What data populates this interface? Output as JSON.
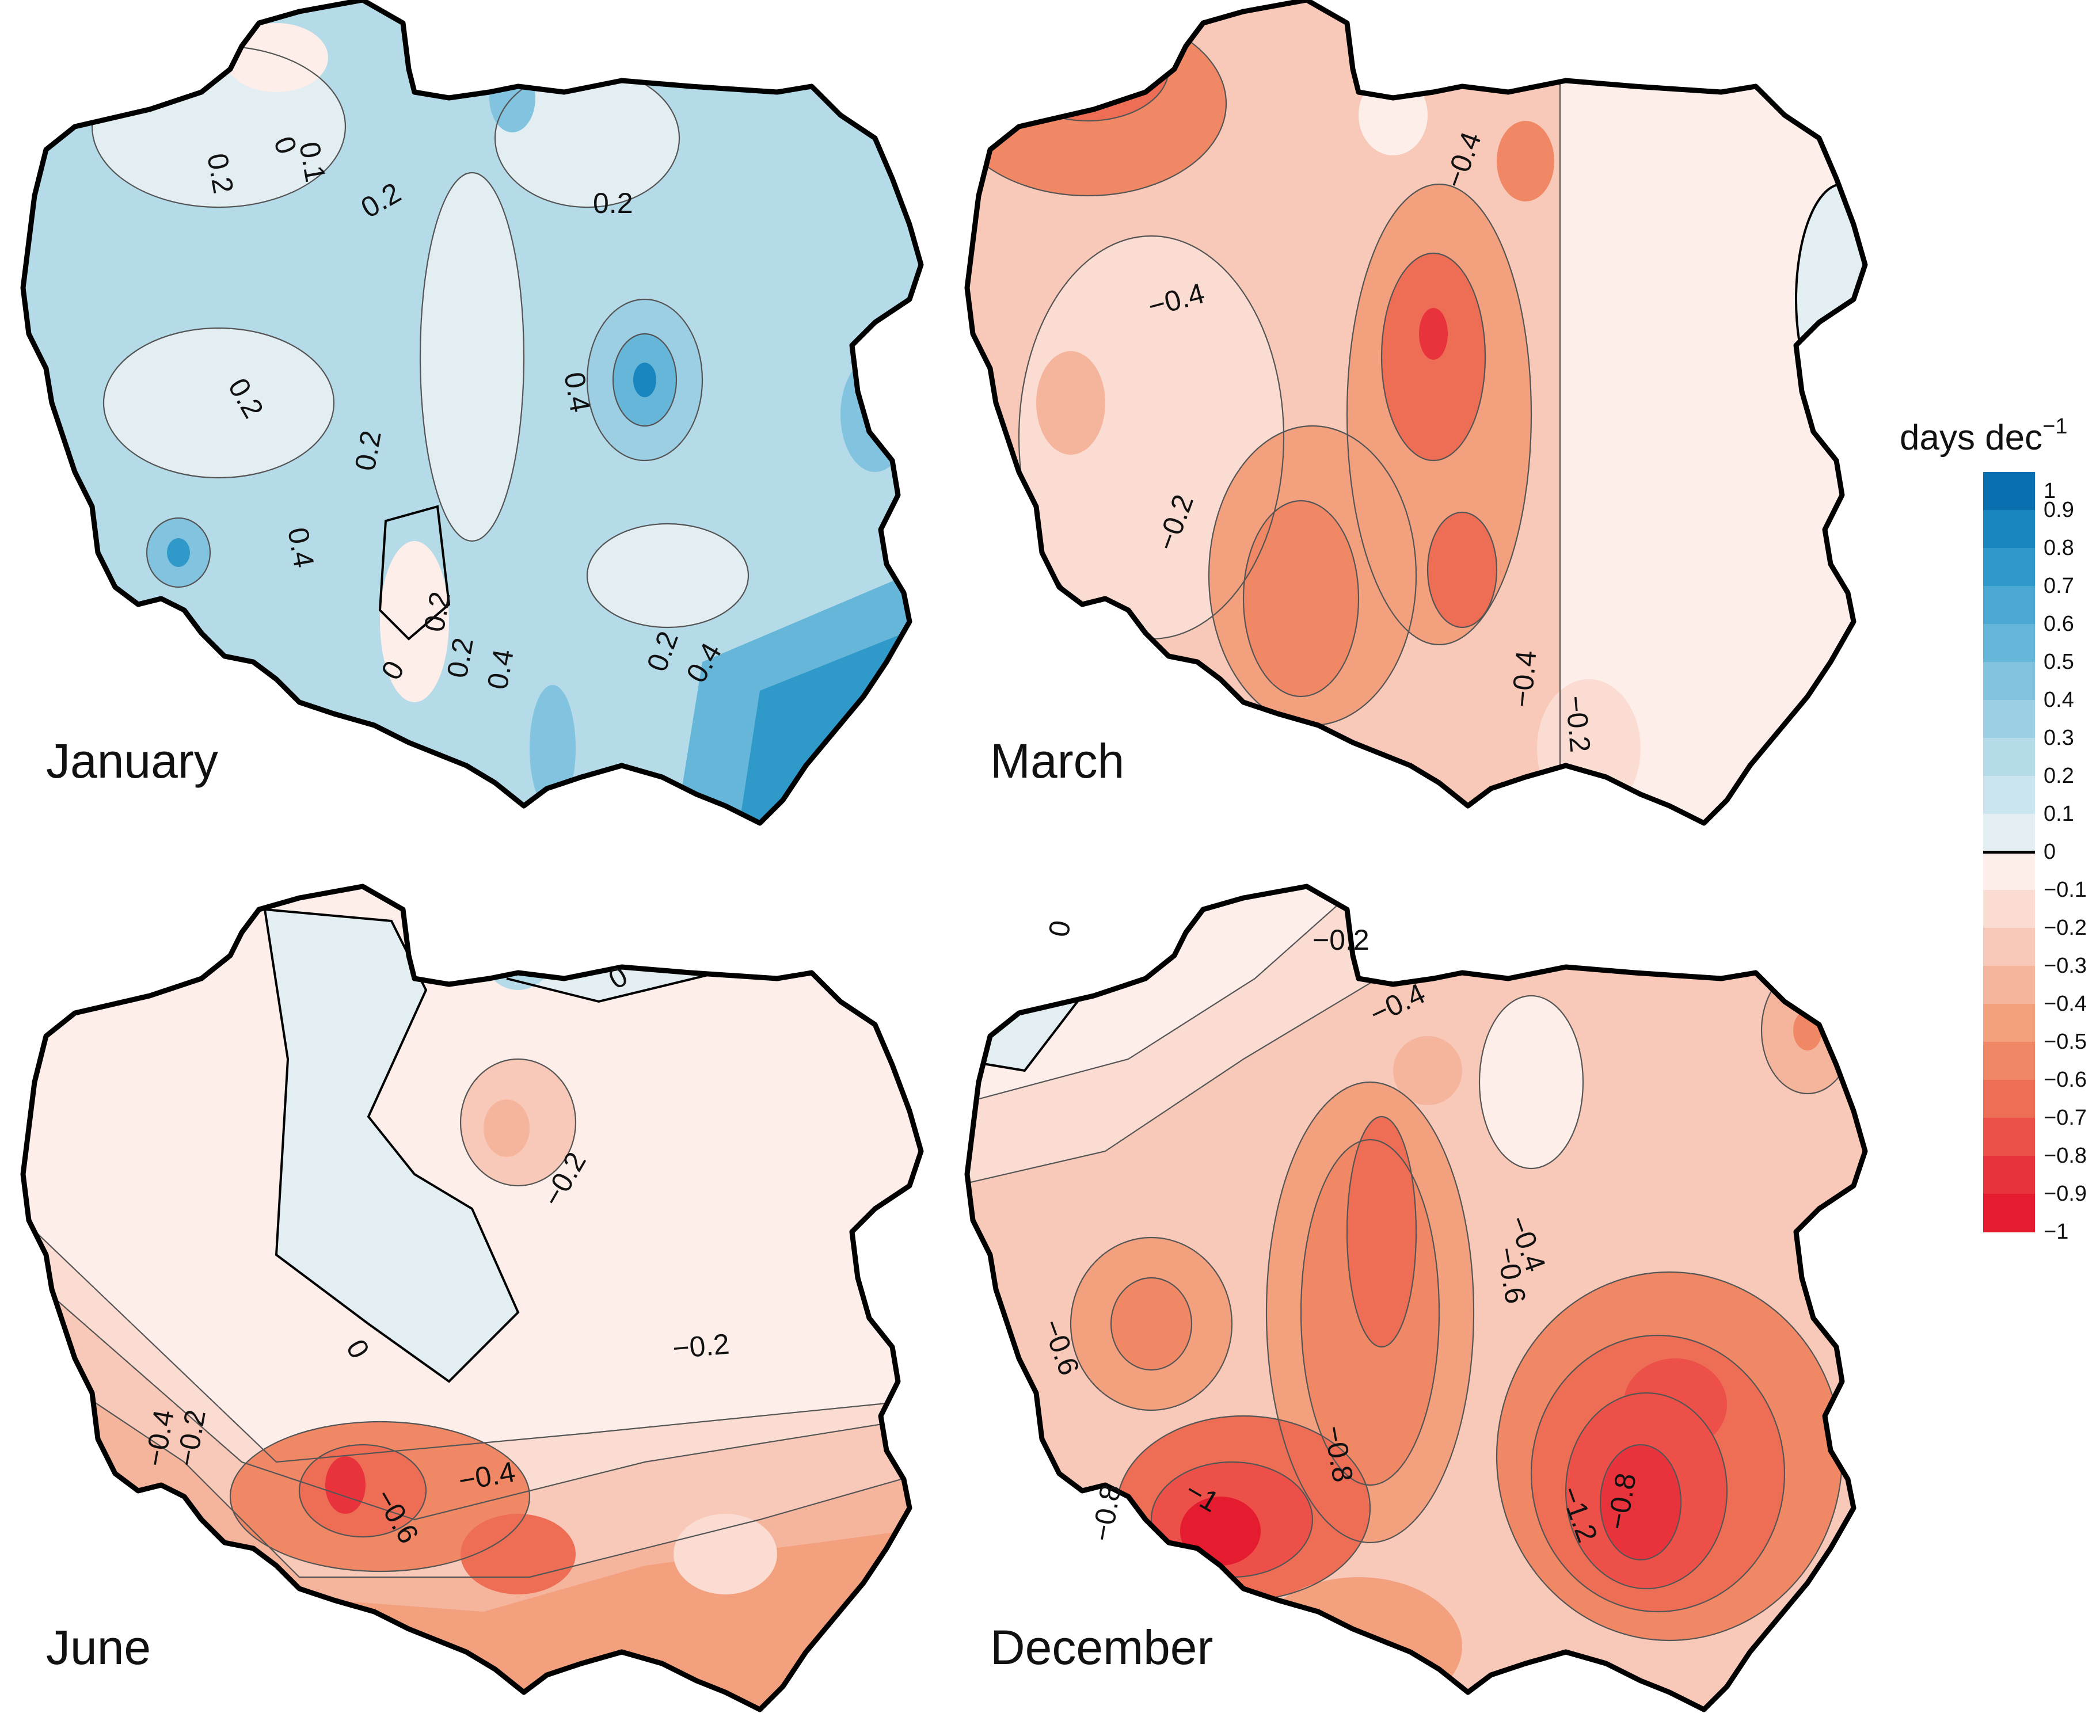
{
  "figure": {
    "panels": [
      {
        "id": "january",
        "month": "January",
        "palette": "blue",
        "contour_labels": [
          "0",
          "0.1",
          "0.2",
          "0.2",
          "0.2",
          "0.2",
          "0.2",
          "0.2",
          "0.4",
          "0.4",
          "0",
          "0.2",
          "0.4",
          "0.2",
          "0.4"
        ]
      },
      {
        "id": "march",
        "month": "March",
        "palette": "red",
        "contour_labels": [
          "−0.4",
          "−0.4",
          "−0.2",
          "−0.4",
          "−0.2"
        ]
      },
      {
        "id": "june",
        "month": "June",
        "palette": "red",
        "contour_labels": [
          "0",
          "−0.2",
          "0",
          "−0.2",
          "−0.4",
          "−0.2",
          "−0.4",
          "−0.6"
        ]
      },
      {
        "id": "december",
        "month": "December",
        "palette": "red",
        "contour_labels": [
          "0",
          "−0.2",
          "−0.4",
          "−0.4",
          "−0.6",
          "−0.6",
          "−0.8",
          "−1",
          "−0.8",
          "−1.2",
          "−0.8"
        ]
      }
    ]
  },
  "legend": {
    "title": "days dec",
    "title_superscript": "−1",
    "ticks": [
      "1",
      "0.9",
      "0.8",
      "0.7",
      "0.6",
      "0.5",
      "0.4",
      "0.3",
      "0.2",
      "0.1",
      "0",
      "−0.1",
      "−0.2",
      "−0.3",
      "−0.4",
      "−0.5",
      "−0.6",
      "−0.7",
      "−0.8",
      "−0.9",
      "−1"
    ],
    "colors": {
      "pos_1.0": "#0a6fae",
      "pos_0.9": "#1a86bf",
      "pos_0.8": "#2f99c9",
      "pos_0.7": "#4aa8d2",
      "pos_0.6": "#66b6d9",
      "pos_0.5": "#82c3df",
      "pos_0.4": "#9ccfe4",
      "pos_0.3": "#b5dbe9",
      "pos_0.2": "#cbe5ee",
      "pos_0.1": "#e2eef2",
      "neg_0.1": "#fdeeea",
      "neg_0.2": "#fbdcd2",
      "neg_0.3": "#f8c9b8",
      "neg_0.4": "#f5b59d",
      "neg_0.5": "#f3a07f",
      "neg_0.6": "#f08866",
      "neg_0.7": "#ee6d55",
      "neg_0.8": "#ec5048",
      "neg_0.9": "#e9333c",
      "neg_1.0": "#e51b2f"
    }
  }
}
